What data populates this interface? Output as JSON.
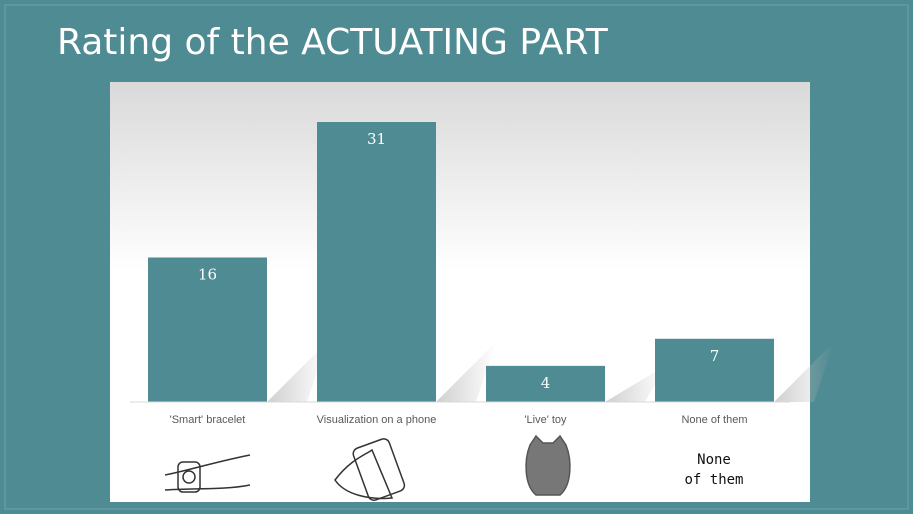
{
  "chart_data": {
    "type": "bar",
    "title": "Rating of the ACTUATING PART",
    "categories": [
      "'Smart' bracelet",
      "Visualization on a phone",
      "'Live' toy",
      "None of them"
    ],
    "values": [
      16,
      31,
      4,
      7
    ],
    "color": "#4f8b92",
    "ylim": [
      0,
      31
    ],
    "annotations": [
      "None",
      "of them"
    ]
  }
}
